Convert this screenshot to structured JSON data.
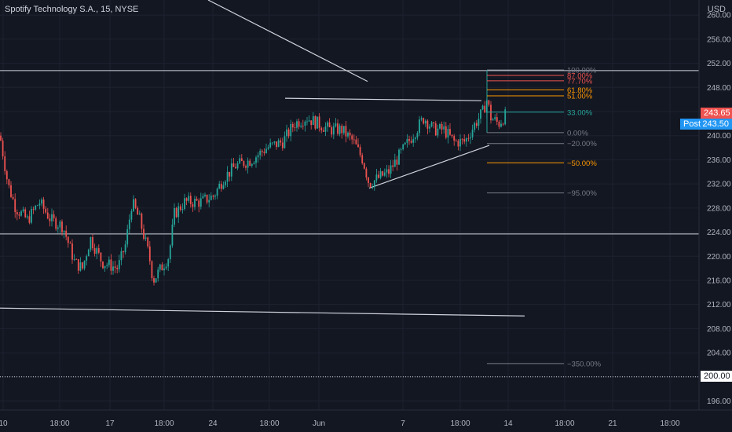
{
  "header": {
    "title": "Spotify Technology S.A., 15, NYSE",
    "currency": "USD"
  },
  "colors": {
    "background": "#131722",
    "up": "#26a69a",
    "down": "#ef5350",
    "grid": "#1e2230",
    "axis_text": "#b2b5be",
    "drawing": "#d1d4dc"
  },
  "badges": {
    "last_price": {
      "label": "",
      "value": "243.65",
      "color": "#ef5350"
    },
    "post_price": {
      "label": "Post",
      "value": "243.50",
      "color": "#2196f3"
    },
    "level_200": {
      "label": "",
      "value": "200.00",
      "color": "#ffffff"
    }
  },
  "chart_data": {
    "type": "candlestick",
    "title": "Spotify Technology S.A., 15, NYSE",
    "y_axis": {
      "label": "USD",
      "ticks": [
        "260.00",
        "256.00",
        "252.00",
        "248.00",
        "244.00",
        "240.00",
        "236.00",
        "232.00",
        "228.00",
        "224.00",
        "220.00",
        "216.00",
        "212.00",
        "208.00",
        "204.00",
        "200.00",
        "196.00"
      ],
      "range": [
        194.5,
        262.5
      ]
    },
    "x_axis": {
      "ticks": [
        "10",
        "18:00",
        "17",
        "18:00",
        "24",
        "18:00",
        "Jun",
        "7",
        "18:00",
        "14",
        "18:00",
        "21",
        "18:00"
      ]
    },
    "price_path": [
      {
        "x": 0,
        "price": 240.0
      },
      {
        "x": 10,
        "price": 232.0
      },
      {
        "x": 20,
        "price": 228.0
      },
      {
        "x": 35,
        "price": 226.0
      },
      {
        "x": 50,
        "price": 229.0
      },
      {
        "x": 65,
        "price": 226.0
      },
      {
        "x": 80,
        "price": 225.0
      },
      {
        "x": 95,
        "price": 219.0
      },
      {
        "x": 105,
        "price": 218.0
      },
      {
        "x": 115,
        "price": 223.0
      },
      {
        "x": 130,
        "price": 219.0
      },
      {
        "x": 150,
        "price": 218.0
      },
      {
        "x": 160,
        "price": 222.0
      },
      {
        "x": 168,
        "price": 229.0
      },
      {
        "x": 178,
        "price": 226.0
      },
      {
        "x": 190,
        "price": 220.0
      },
      {
        "x": 195,
        "price": 216.0
      },
      {
        "x": 205,
        "price": 218.0
      },
      {
        "x": 215,
        "price": 220.0
      },
      {
        "x": 222,
        "price": 227.0
      },
      {
        "x": 235,
        "price": 229.0
      },
      {
        "x": 255,
        "price": 229.0
      },
      {
        "x": 272,
        "price": 230.0
      },
      {
        "x": 285,
        "price": 233.0
      },
      {
        "x": 300,
        "price": 235.0
      },
      {
        "x": 320,
        "price": 236.0
      },
      {
        "x": 340,
        "price": 238.0
      },
      {
        "x": 360,
        "price": 239.0
      },
      {
        "x": 375,
        "price": 242.0
      },
      {
        "x": 390,
        "price": 243.0
      },
      {
        "x": 405,
        "price": 242.0
      },
      {
        "x": 420,
        "price": 241.0
      },
      {
        "x": 435,
        "price": 241.0
      },
      {
        "x": 450,
        "price": 239.0
      },
      {
        "x": 462,
        "price": 236.0
      },
      {
        "x": 470,
        "price": 232.0
      },
      {
        "x": 482,
        "price": 233.0
      },
      {
        "x": 495,
        "price": 234.0
      },
      {
        "x": 510,
        "price": 237.0
      },
      {
        "x": 525,
        "price": 240.0
      },
      {
        "x": 540,
        "price": 243.0
      },
      {
        "x": 552,
        "price": 241.0
      },
      {
        "x": 565,
        "price": 241.0
      },
      {
        "x": 578,
        "price": 239.0
      },
      {
        "x": 592,
        "price": 239.0
      },
      {
        "x": 605,
        "price": 242.0
      },
      {
        "x": 615,
        "price": 244.0
      },
      {
        "x": 620,
        "price": 246.0
      },
      {
        "x": 625,
        "price": 243.0
      },
      {
        "x": 635,
        "price": 242.0
      },
      {
        "x": 645,
        "price": 243.65
      }
    ],
    "horizontal_levels": [
      {
        "price": 250.8,
        "style": "solid"
      },
      {
        "price": 223.7,
        "style": "solid"
      },
      {
        "price": 200.0,
        "style": "dotted"
      }
    ],
    "fib_levels": [
      {
        "label": "100.00%",
        "price": 250.9,
        "color": "#787b86"
      },
      {
        "label": "87.00%",
        "price": 250.0,
        "color": "#ef5350"
      },
      {
        "label": "77.70%",
        "price": 249.1,
        "color": "#ef5350"
      },
      {
        "label": "61.80%",
        "price": 247.6,
        "color": "#ff9800"
      },
      {
        "label": "51.00%",
        "price": 246.6,
        "color": "#ff9800"
      },
      {
        "label": "33.00%",
        "price": 243.9,
        "color": "#26a69a"
      },
      {
        "label": "0.00%",
        "price": 240.5,
        "color": "#787b86"
      },
      {
        "label": "−20.00%",
        "price": 238.7,
        "color": "#787b86"
      },
      {
        "label": "−50.00%",
        "price": 235.5,
        "color": "#ff9800"
      },
      {
        "label": "−95.00%",
        "price": 230.5,
        "color": "#787b86"
      },
      {
        "label": "−350.00%",
        "price": 202.2,
        "color": "#787b86"
      }
    ]
  }
}
